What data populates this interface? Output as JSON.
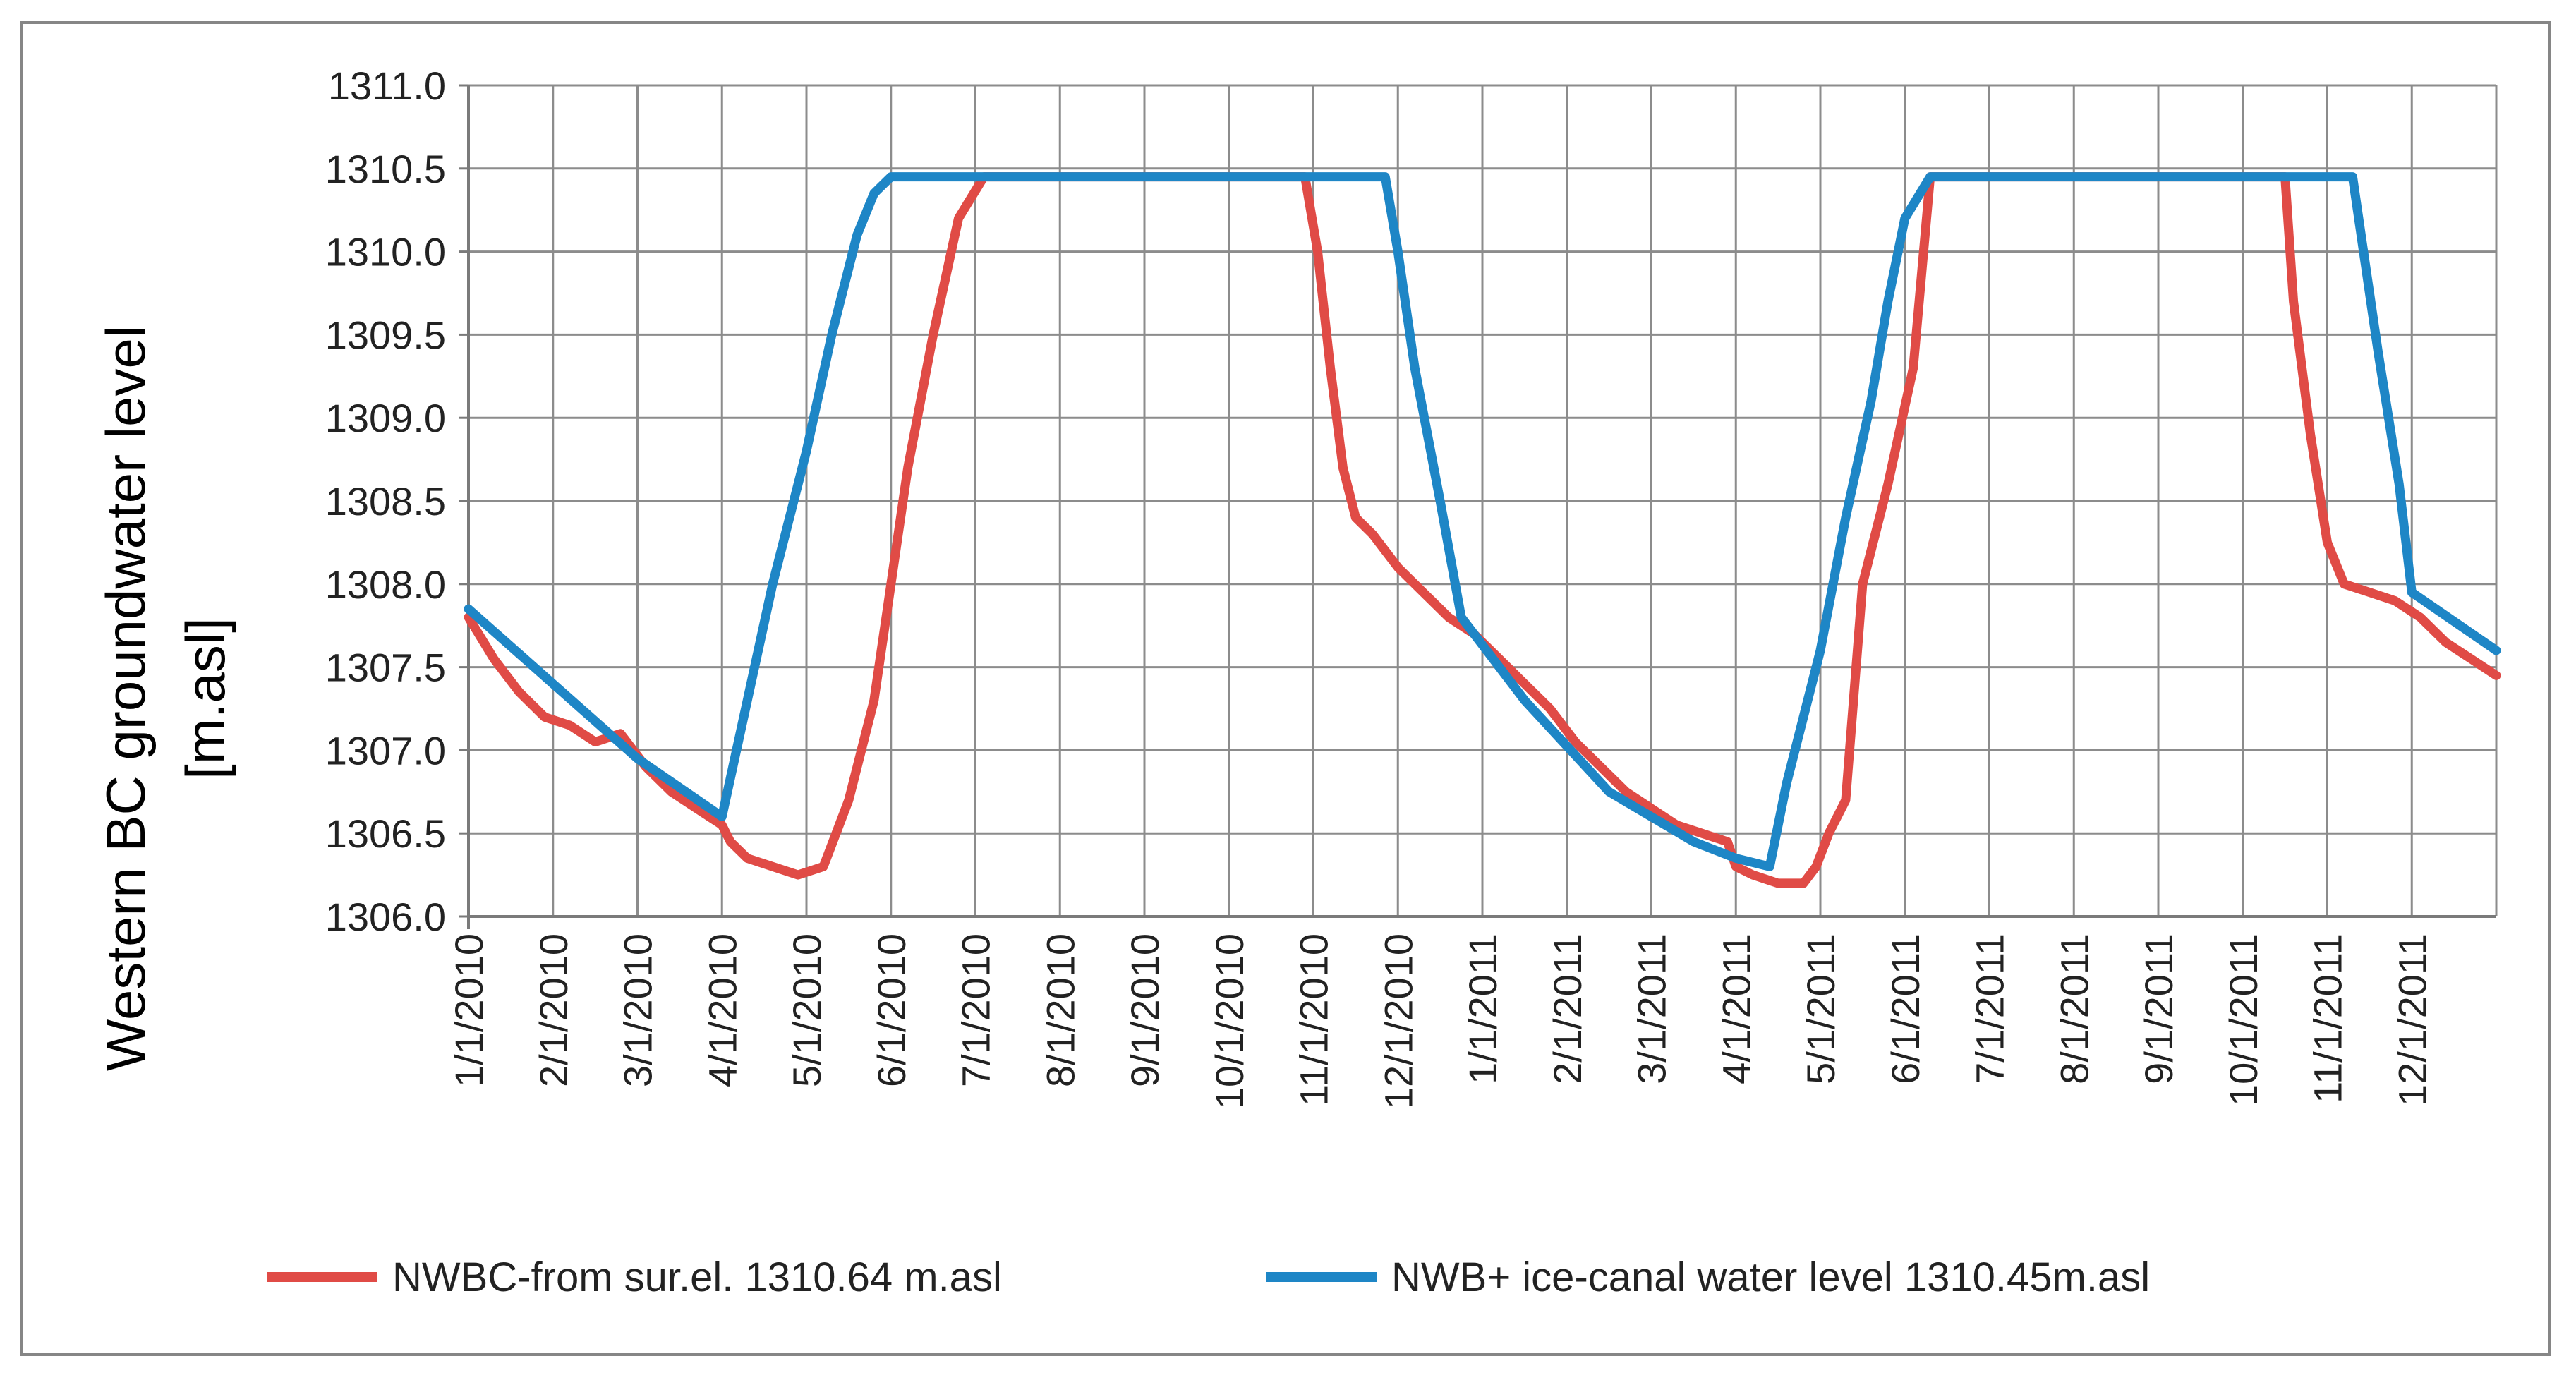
{
  "chart_data": {
    "type": "line",
    "title": "",
    "xlabel": "",
    "ylabel_lines": [
      "Western BC groundwater level",
      "[m.asl]"
    ],
    "ylim": [
      1306.0,
      1311.0
    ],
    "y_ticks": [
      "1306.0",
      "1306.5",
      "1307.0",
      "1307.5",
      "1308.0",
      "1308.5",
      "1309.0",
      "1309.5",
      "1310.0",
      "1310.5",
      "1311.0"
    ],
    "x_range_months": [
      0,
      24
    ],
    "x_ticks": [
      "1/1/2010",
      "2/1/2010",
      "3/1/2010",
      "4/1/2010",
      "5/1/2010",
      "6/1/2010",
      "7/1/2010",
      "8/1/2010",
      "9/1/2010",
      "10/1/2010",
      "11/1/2010",
      "12/1/2010",
      "1/1/2011",
      "2/1/2011",
      "3/1/2011",
      "4/1/2011",
      "5/1/2011",
      "6/1/2011",
      "7/1/2011",
      "8/1/2011",
      "9/1/2011",
      "10/1/2011",
      "11/1/2011",
      "12/1/2011"
    ],
    "grid": true,
    "legend_position": "bottom",
    "series": [
      {
        "name": "NWBC-from sur.el. 1310.64 m.asl",
        "color": "#e04b46",
        "x": [
          0,
          0.3,
          0.6,
          0.9,
          1.2,
          1.5,
          1.8,
          2.1,
          2.4,
          2.7,
          3.0,
          3.1,
          3.3,
          3.6,
          3.9,
          4.2,
          4.5,
          4.7,
          4.8,
          5.0,
          5.2,
          5.5,
          5.8,
          6.1,
          6.3,
          7.0,
          8.0,
          9.0,
          9.9,
          10.05,
          10.2,
          10.35,
          10.5,
          10.7,
          11.0,
          11.3,
          11.6,
          11.9,
          12.2,
          12.5,
          12.8,
          13.1,
          13.4,
          13.7,
          14.0,
          14.3,
          14.6,
          14.9,
          15.0,
          15.2,
          15.5,
          15.8,
          15.95,
          16.1,
          16.3,
          16.5,
          16.8,
          17.1,
          17.3,
          18.0,
          19.0,
          20.0,
          21.0,
          21.5,
          21.6,
          21.8,
          22.0,
          22.2,
          22.5,
          22.8,
          23.1,
          23.4,
          23.7,
          24.0
        ],
        "y": [
          1307.8,
          1307.55,
          1307.35,
          1307.2,
          1307.15,
          1307.05,
          1307.1,
          1306.9,
          1306.75,
          1306.65,
          1306.55,
          1306.45,
          1306.35,
          1306.3,
          1306.25,
          1306.3,
          1306.7,
          1307.1,
          1307.3,
          1308.0,
          1308.7,
          1309.5,
          1310.2,
          1310.45,
          1310.45,
          1310.45,
          1310.45,
          1310.45,
          1310.45,
          1310.0,
          1309.3,
          1308.7,
          1308.4,
          1308.3,
          1308.1,
          1307.95,
          1307.8,
          1307.7,
          1307.55,
          1307.4,
          1307.25,
          1307.05,
          1306.9,
          1306.75,
          1306.65,
          1306.55,
          1306.5,
          1306.45,
          1306.3,
          1306.25,
          1306.2,
          1306.2,
          1306.3,
          1306.5,
          1306.7,
          1308.0,
          1308.6,
          1309.3,
          1310.45,
          1310.45,
          1310.45,
          1310.45,
          1310.45,
          1310.45,
          1309.7,
          1308.9,
          1308.25,
          1308.0,
          1307.95,
          1307.9,
          1307.8,
          1307.65,
          1307.55,
          1307.45
        ]
      },
      {
        "name": "NWB+ ice-canal water level 1310.45m.asl",
        "color": "#1e86c6",
        "x": [
          0,
          1.0,
          2.0,
          3.0,
          3.3,
          3.6,
          4.0,
          4.3,
          4.6,
          4.8,
          5.0,
          5.2,
          5.4,
          6.0,
          7.0,
          8.0,
          9.0,
          10.0,
          10.85,
          11.0,
          11.2,
          11.5,
          11.75,
          12.5,
          13.5,
          14.5,
          15.0,
          15.4,
          15.6,
          16.0,
          16.3,
          16.6,
          16.8,
          17.0,
          17.3,
          18.0,
          19.0,
          20.0,
          21.0,
          22.0,
          22.3,
          22.6,
          22.85,
          23.0,
          24.0
        ],
        "y": [
          1307.85,
          1307.4,
          1306.95,
          1306.6,
          1307.3,
          1308.0,
          1308.8,
          1309.5,
          1310.1,
          1310.35,
          1310.45,
          1310.45,
          1310.45,
          1310.45,
          1310.45,
          1310.45,
          1310.45,
          1310.45,
          1310.45,
          1310.0,
          1309.3,
          1308.5,
          1307.8,
          1307.3,
          1306.75,
          1306.45,
          1306.35,
          1306.3,
          1306.8,
          1307.6,
          1308.4,
          1309.1,
          1309.7,
          1310.2,
          1310.45,
          1310.45,
          1310.45,
          1310.45,
          1310.45,
          1310.45,
          1310.45,
          1309.4,
          1308.6,
          1307.95,
          1307.6
        ]
      }
    ]
  }
}
